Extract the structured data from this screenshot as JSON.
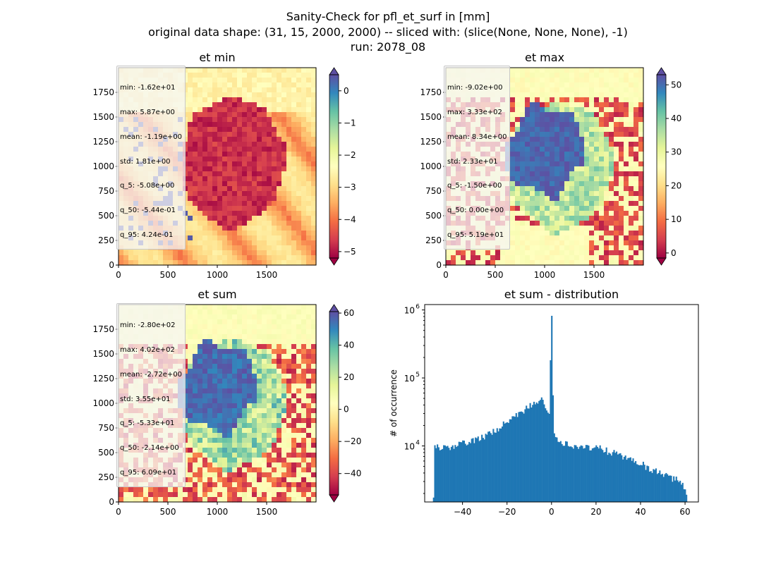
{
  "figure": {
    "title_line1": "Sanity-Check for pfl_et_surf in [mm]",
    "title_line2": "original data shape: (31, 15, 2000, 2000) -- sliced with: (slice(None, None, None), -1)",
    "title_line3": "run: 2078_08"
  },
  "panels": [
    {
      "title": "et min",
      "stats": [
        "min: -1.62e+01",
        "max: 5.87e+00",
        "mean: -1.19e+00",
        "std: 1.81e+00",
        "q_5: -5.08e+00",
        "q_50: -5.44e-01",
        "q_95: 4.24e-01"
      ],
      "cmap": "Spectral",
      "vmin": -5.2,
      "vmax": 0.5,
      "colorbar_ticks": [
        "0",
        "−1",
        "−2",
        "−3",
        "−4",
        "−5"
      ],
      "colorbar_tick_values": [
        0,
        -1,
        -2,
        -3,
        -4,
        -5
      ]
    },
    {
      "title": "et max",
      "stats": [
        "min: -9.02e+00",
        "max: 3.33e+02",
        "mean: 8.34e+00",
        "std: 2.33e+01",
        "q_5: -1.50e+00",
        "q_50: 0.00e+00",
        "q_95: 5.19e+01"
      ],
      "cmap": "Spectral",
      "vmin": -1.5,
      "vmax": 53,
      "colorbar_ticks": [
        "50",
        "40",
        "30",
        "20",
        "10",
        "0"
      ],
      "colorbar_tick_values": [
        50,
        40,
        30,
        20,
        10,
        0
      ]
    },
    {
      "title": "et sum",
      "stats": [
        "min: -2.80e+02",
        "max: 4.02e+02",
        "mean: -2.72e+00",
        "std: 3.55e+01",
        "q_5: -5.33e+01",
        "q_50: -2.14e+00",
        "q_95: 6.09e+01"
      ],
      "cmap": "Spectral",
      "vmin": -53.3,
      "vmax": 60.9,
      "colorbar_ticks": [
        "60",
        "40",
        "20",
        "0",
        "−20",
        "−40"
      ],
      "colorbar_tick_values": [
        60,
        40,
        20,
        0,
        -20,
        -40
      ]
    }
  ],
  "image_axes": {
    "x_ticks": [
      "0",
      "500",
      "1000",
      "1500"
    ],
    "x_tick_values": [
      0,
      500,
      1000,
      1500
    ],
    "y_ticks": [
      "0",
      "250",
      "500",
      "750",
      "1000",
      "1250",
      "1500",
      "1750"
    ],
    "y_tick_values": [
      0,
      250,
      500,
      750,
      1000,
      1250,
      1500,
      1750
    ],
    "xlim": [
      0,
      2000
    ],
    "ylim": [
      0,
      2000
    ]
  },
  "chart_data": {
    "type": "bar",
    "title": "et sum - distribution",
    "xlabel": "",
    "ylabel": "# of occurrence",
    "xlim": [
      -57,
      66
    ],
    "ylim": [
      1500,
      1200000
    ],
    "yscale": "log",
    "x_ticks": [
      "−40",
      "−20",
      "0",
      "20",
      "40",
      "60"
    ],
    "x_tick_values": [
      -40,
      -20,
      0,
      20,
      40,
      60
    ],
    "y_ticks": [
      "10",
      "10",
      "10"
    ],
    "y_tick_exps": [
      "4",
      "5",
      "6"
    ],
    "y_tick_values": [
      10000,
      100000,
      1000000
    ],
    "bar_color": "#1f77b4",
    "bin_range": [
      -53.3,
      60.9
    ],
    "bins": 200,
    "peak": {
      "x": 0,
      "value": 820000
    },
    "key_points": [
      [
        -53,
        9500
      ],
      [
        -45,
        9500
      ],
      [
        -40,
        11000
      ],
      [
        -30,
        14000
      ],
      [
        -20,
        22000
      ],
      [
        -10,
        38000
      ],
      [
        -5,
        50000
      ],
      [
        -1,
        32000
      ],
      [
        0,
        820000
      ],
      [
        1,
        15000
      ],
      [
        5,
        11000
      ],
      [
        10,
        9500
      ],
      [
        20,
        9500
      ],
      [
        30,
        7500
      ],
      [
        40,
        5500
      ],
      [
        50,
        3800
      ],
      [
        58,
        3000
      ],
      [
        60.9,
        1800
      ]
    ]
  }
}
